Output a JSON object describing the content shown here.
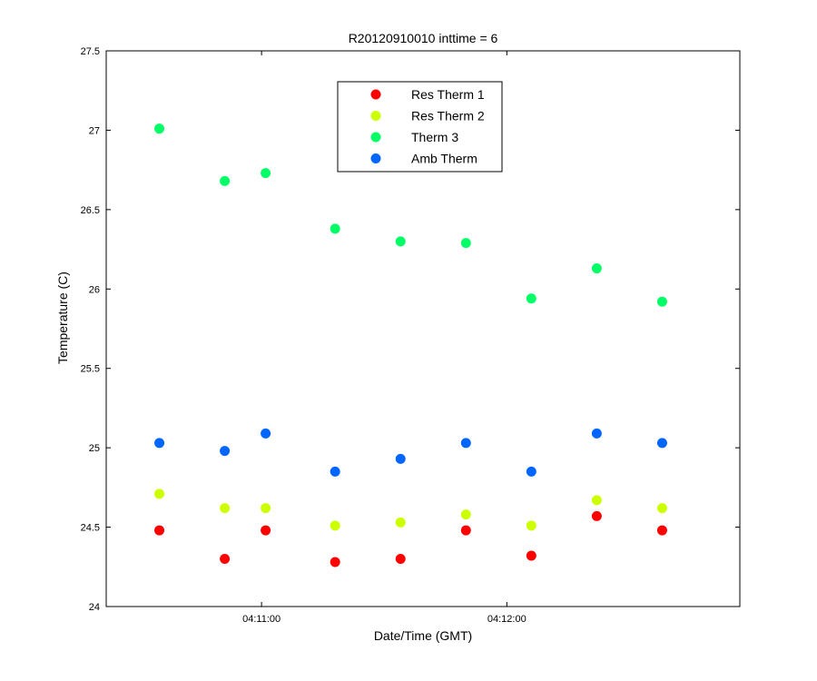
{
  "chart_data": {
    "type": "scatter",
    "title": "R20120910010 inttime = 6",
    "xlabel": "Date/Time (GMT)",
    "ylabel": "Temperature (C)",
    "ylim": [
      24,
      27.5
    ],
    "yticks": [
      24,
      24.5,
      25,
      25.5,
      26,
      26.5,
      27,
      27.5
    ],
    "ytick_labels": [
      "24",
      "24.5",
      "25",
      "25.5",
      "26",
      "26.5",
      "27",
      "27.5"
    ],
    "xlim": [
      "04:10:22",
      "04:12:57"
    ],
    "xticks": [
      "04:11:00",
      "04:12:00"
    ],
    "x": [
      "04:10:35",
      "04:10:51",
      "04:11:01",
      "04:11:18",
      "04:11:34",
      "04:11:50",
      "04:12:06",
      "04:12:22",
      "04:12:38"
    ],
    "grid": false,
    "legend_position": "top-center",
    "series": [
      {
        "name": "Res Therm 1",
        "color": "#ff0000",
        "values": [
          24.48,
          24.3,
          24.48,
          24.28,
          24.3,
          24.48,
          24.32,
          24.57,
          24.48
        ]
      },
      {
        "name": "Res Therm 2",
        "color": "#ccff00",
        "values": [
          24.71,
          24.62,
          24.62,
          24.51,
          24.53,
          24.58,
          24.51,
          24.67,
          24.62
        ]
      },
      {
        "name": "Therm 3",
        "color": "#00ff66",
        "values": [
          27.01,
          26.68,
          26.73,
          26.38,
          26.3,
          26.29,
          25.94,
          26.13,
          25.92
        ]
      },
      {
        "name": "Amb Therm",
        "color": "#0066ff",
        "values": [
          25.03,
          24.98,
          25.09,
          24.85,
          24.93,
          25.03,
          24.85,
          25.09,
          25.03
        ]
      }
    ]
  }
}
